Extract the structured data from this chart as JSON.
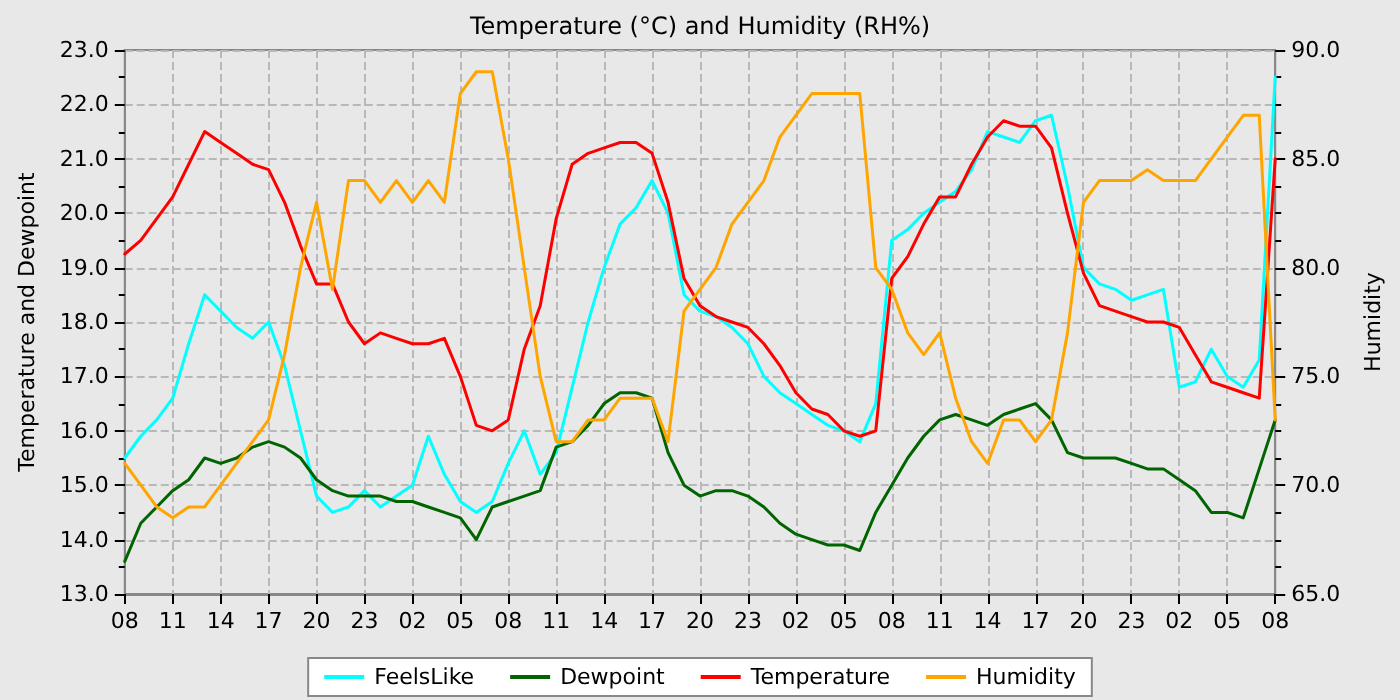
{
  "chart_data": {
    "type": "line",
    "title": "Temperature (°C) and Humidity (RH%)",
    "ylabel": "Temperature and Dewpoint",
    "y2label": "Humidity",
    "categories": [
      "08",
      null,
      null,
      "11",
      null,
      null,
      "14",
      null,
      null,
      "17",
      null,
      null,
      "20",
      null,
      null,
      "23",
      null,
      null,
      "02",
      null,
      null,
      "05",
      null,
      null,
      "08",
      null,
      null,
      "11",
      null,
      null,
      "14",
      null,
      null,
      "17",
      null,
      null,
      "20",
      null,
      null,
      "23",
      null,
      null,
      "02",
      null,
      null,
      "05",
      null,
      null,
      "08",
      null,
      null,
      "11",
      null,
      null,
      "14",
      null,
      null,
      "17",
      null,
      null,
      "20",
      null,
      null,
      "23",
      null,
      null,
      "02",
      null,
      null,
      "05",
      null,
      null,
      "08"
    ],
    "ylim": [
      13,
      23
    ],
    "yticks": [
      {
        "value": 13,
        "label": "13.0"
      },
      {
        "value": 14,
        "label": "14.0"
      },
      {
        "value": 15,
        "label": "15.0"
      },
      {
        "value": 16,
        "label": "16.0"
      },
      {
        "value": 17,
        "label": "17.0"
      },
      {
        "value": 18,
        "label": "18.0"
      },
      {
        "value": 19,
        "label": "19.0"
      },
      {
        "value": 20,
        "label": "20.0"
      },
      {
        "value": 21,
        "label": "21.0"
      },
      {
        "value": 22,
        "label": "22.0"
      },
      {
        "value": 23,
        "label": "23.0"
      }
    ],
    "y2lim": [
      65,
      90
    ],
    "y2ticks": [
      {
        "value": 65,
        "label": "65.0"
      },
      {
        "value": 70,
        "label": "70.0"
      },
      {
        "value": 75,
        "label": "75.0"
      },
      {
        "value": 80,
        "label": "80.0"
      },
      {
        "value": 85,
        "label": "85.0"
      },
      {
        "value": 90,
        "label": "90.0"
      }
    ],
    "grid": true,
    "legend": "bottom",
    "marker": "none",
    "line_style": "solid",
    "series": [
      {
        "name": "FeelsLike",
        "color": "#00ffff",
        "values": [
          15.5,
          15.9,
          16.2,
          16.6,
          17.6,
          18.5,
          18.2,
          17.9,
          17.7,
          18.0,
          17.2,
          16.0,
          14.8,
          14.5,
          14.6,
          14.9,
          14.6,
          14.8,
          15.0,
          15.9,
          15.2,
          14.7,
          14.5,
          14.7,
          15.4,
          16.0,
          15.2,
          15.6,
          16.8,
          18.0,
          19.0,
          19.8,
          20.1,
          20.6,
          20.0,
          18.5,
          18.2,
          18.1,
          17.9,
          17.6,
          17.0,
          16.7,
          16.5,
          16.3,
          16.1,
          16.0,
          15.8,
          16.5,
          19.5,
          19.7,
          20.0,
          20.2,
          20.4,
          20.8,
          21.5,
          21.4,
          21.3,
          21.7,
          21.8,
          20.5,
          19.0,
          18.7,
          18.6,
          18.4,
          18.5,
          18.6,
          16.8,
          16.9,
          17.5,
          17.0,
          16.8,
          17.3,
          22.5
        ]
      },
      {
        "name": "Dewpoint",
        "color": "#006400",
        "values": [
          13.6,
          14.3,
          14.6,
          14.9,
          15.1,
          15.5,
          15.4,
          15.5,
          15.7,
          15.8,
          15.7,
          15.5,
          15.1,
          14.9,
          14.8,
          14.8,
          14.8,
          14.7,
          14.7,
          14.6,
          14.5,
          14.4,
          14.0,
          14.6,
          14.7,
          14.8,
          14.9,
          15.7,
          15.8,
          16.1,
          16.5,
          16.7,
          16.7,
          16.6,
          15.6,
          15.0,
          14.8,
          14.9,
          14.9,
          14.8,
          14.6,
          14.3,
          14.1,
          14.0,
          13.9,
          13.9,
          13.8,
          14.5,
          15.0,
          15.5,
          15.9,
          16.2,
          16.3,
          16.2,
          16.1,
          16.3,
          16.4,
          16.5,
          16.2,
          15.6,
          15.5,
          15.5,
          15.5,
          15.4,
          15.3,
          15.3,
          15.1,
          14.9,
          14.5,
          14.5,
          14.4,
          15.3,
          16.2
        ]
      },
      {
        "name": "Temperature",
        "color": "#ff0000",
        "values": [
          19.25,
          19.5,
          19.9,
          20.3,
          20.9,
          21.5,
          21.3,
          21.1,
          20.9,
          20.8,
          20.2,
          19.4,
          18.7,
          18.7,
          18.0,
          17.6,
          17.8,
          17.7,
          17.6,
          17.6,
          17.7,
          17.0,
          16.1,
          16.0,
          16.2,
          17.5,
          18.3,
          19.9,
          20.9,
          21.1,
          21.2,
          21.3,
          21.3,
          21.1,
          20.2,
          18.8,
          18.3,
          18.1,
          18.0,
          17.9,
          17.6,
          17.2,
          16.7,
          16.4,
          16.3,
          16.0,
          15.9,
          16.0,
          18.8,
          19.2,
          19.8,
          20.3,
          20.3,
          20.9,
          21.4,
          21.7,
          21.6,
          21.6,
          21.2,
          20.0,
          18.9,
          18.3,
          18.2,
          18.1,
          18.0,
          18.0,
          17.9,
          17.4,
          16.9,
          16.8,
          16.7,
          16.6,
          21.0
        ]
      },
      {
        "name": "Humidity",
        "color": "#ffa500",
        "axis": "y2",
        "values": [
          71,
          70,
          69,
          68.5,
          69,
          69,
          70,
          71,
          72,
          73,
          76,
          80,
          83,
          79,
          84,
          84,
          83,
          84,
          83,
          84,
          83,
          88,
          89,
          89,
          85,
          80,
          75,
          72,
          72,
          73,
          73,
          74,
          74,
          74,
          72,
          78,
          79,
          80,
          82,
          83,
          84,
          86,
          87,
          88,
          88,
          88,
          88,
          80,
          79,
          77,
          76,
          77,
          74,
          72,
          71,
          73,
          73,
          72,
          73,
          77,
          83,
          84,
          84,
          84,
          84.5,
          84,
          84,
          84,
          85,
          86,
          87,
          87,
          73
        ]
      }
    ]
  }
}
